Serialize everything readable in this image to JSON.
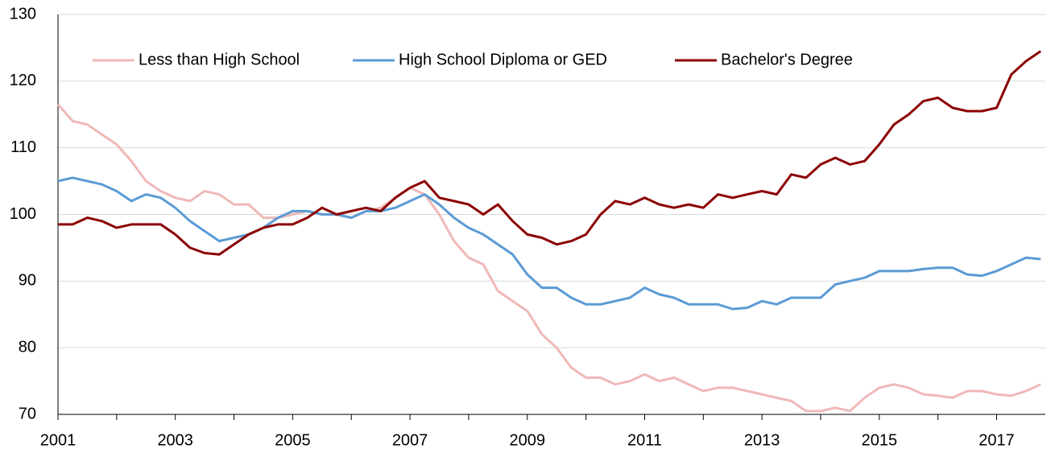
{
  "chart_data": {
    "type": "line",
    "x": [
      2001,
      2001.25,
      2001.5,
      2001.75,
      2002,
      2002.25,
      2002.5,
      2002.75,
      2003,
      2003.25,
      2003.5,
      2003.75,
      2004,
      2004.25,
      2004.5,
      2004.75,
      2005,
      2005.25,
      2005.5,
      2005.75,
      2006,
      2006.25,
      2006.5,
      2006.75,
      2007,
      2007.25,
      2007.5,
      2007.75,
      2008,
      2008.25,
      2008.5,
      2008.75,
      2009,
      2009.25,
      2009.5,
      2009.75,
      2010,
      2010.25,
      2010.5,
      2010.75,
      2011,
      2011.25,
      2011.5,
      2011.75,
      2012,
      2012.25,
      2012.5,
      2012.75,
      2013,
      2013.25,
      2013.5,
      2013.75,
      2014,
      2014.25,
      2014.5,
      2014.75,
      2015,
      2015.25,
      2015.5,
      2015.75,
      2016,
      2016.25,
      2016.5,
      2016.75,
      2017,
      2017.25,
      2017.5,
      2017.75
    ],
    "series": [
      {
        "name": "Less than High School",
        "color": "#f0b8b8",
        "values": [
          116.5,
          114,
          113.5,
          112,
          110.5,
          108,
          105,
          103.5,
          102.5,
          102,
          103.5,
          103,
          101.5,
          101.5,
          99.5,
          99.5,
          100,
          100.5,
          100,
          100,
          99.5,
          100.5,
          101,
          102.5,
          104,
          103,
          100,
          96,
          93.5,
          92.5,
          88.5,
          87,
          85.5,
          82,
          80,
          77,
          75.5,
          75.5,
          74.5,
          75,
          76,
          75,
          75.5,
          74.5,
          73.5,
          74,
          74,
          73.5,
          73,
          72.5,
          72,
          70.5,
          70.5,
          71,
          70.5,
          72.5,
          74,
          74.5,
          74,
          73,
          72.8,
          72.5,
          73.5,
          73.5,
          73,
          72.8,
          73.5,
          74.5
        ]
      },
      {
        "name": "High School Diploma or GED",
        "color": "#5b9bd5",
        "values": [
          105,
          105.5,
          105,
          104.5,
          103.5,
          102,
          103,
          102.5,
          101,
          99,
          97.5,
          96,
          96.5,
          97,
          98,
          99.5,
          100.5,
          100.5,
          100,
          100,
          99.5,
          100.5,
          100.5,
          101,
          102,
          103,
          101.5,
          99.5,
          98,
          97,
          95.5,
          94,
          91,
          89,
          89,
          87.5,
          86.5,
          86.5,
          87,
          87.5,
          89,
          88,
          87.5,
          86.5,
          86.5,
          86.5,
          85.8,
          86,
          87,
          86.5,
          87.5,
          87.5,
          87.5,
          89.5,
          90,
          90.5,
          91.5,
          91.5,
          91.5,
          91.8,
          92,
          92,
          91,
          90.8,
          91.5,
          92.5,
          93.5,
          93.3
        ]
      },
      {
        "name": "Bachelor's Degree",
        "color": "#8b0000",
        "values": [
          98.5,
          98.5,
          99.5,
          99,
          98,
          98.5,
          98.5,
          98.5,
          97,
          95,
          94.2,
          94,
          95.5,
          97,
          98,
          98.5,
          98.5,
          99.5,
          101,
          100,
          100.5,
          101,
          100.5,
          102.5,
          104,
          105,
          102.5,
          102,
          101.5,
          100,
          101.5,
          99,
          97,
          96.5,
          95.5,
          96,
          97,
          100,
          102,
          101.5,
          102.5,
          101.5,
          101,
          101.5,
          101,
          103,
          102.5,
          103,
          103.5,
          103,
          106,
          105.5,
          107.5,
          108.5,
          107.5,
          108,
          110.5,
          113.5,
          115,
          117,
          117.5,
          116,
          115.5,
          115.5,
          116,
          121,
          123,
          124.5
        ]
      }
    ],
    "xlim": [
      2001,
      2017.83
    ],
    "xticks": [
      2001,
      2003,
      2005,
      2007,
      2009,
      2011,
      2013,
      2015,
      2017
    ],
    "xminor_ticks": [
      2002,
      2004,
      2006,
      2008,
      2010,
      2012,
      2014,
      2016
    ],
    "ylim": [
      70,
      130
    ],
    "yticks": [
      70,
      80,
      90,
      100,
      110,
      120,
      130
    ],
    "grid": true,
    "legend": "top"
  }
}
